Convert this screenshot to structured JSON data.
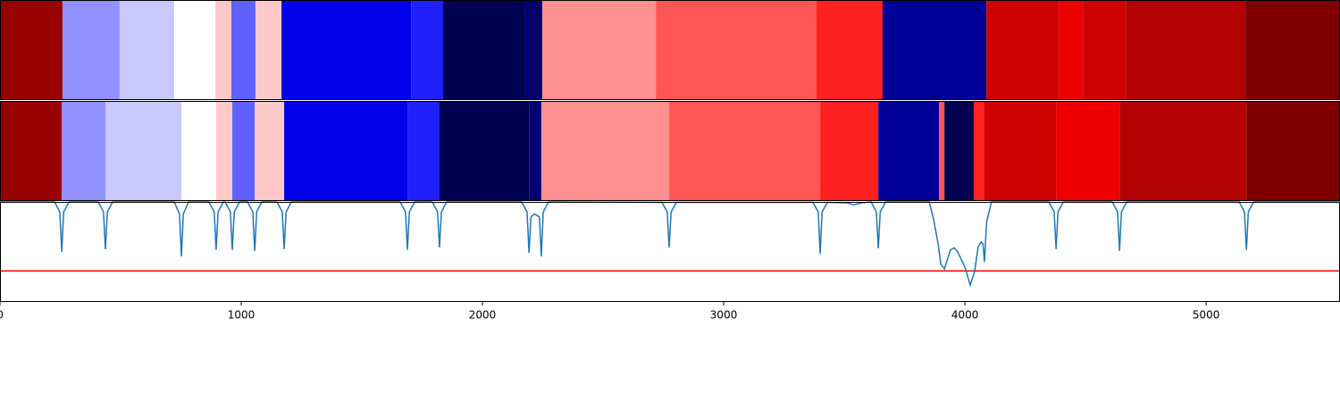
{
  "chart_data": {
    "type": "segmentation",
    "xlim": [
      0,
      5555
    ],
    "xticks": [
      0,
      1000,
      2000,
      3000,
      4000,
      5000
    ],
    "rows": [
      {
        "boundaries": [
          0,
          259,
          496,
          722,
          893,
          959,
          1059,
          1167,
          1704,
          1837,
          2174,
          2248,
          2719,
          3385,
          3659,
          4089,
          4389,
          4489,
          4667,
          5163,
          5555
        ],
        "colors": [
          "#990000",
          "#9090ff",
          "#c8c8ff",
          "#ffffff",
          "#ffc8c8",
          "#6060ff",
          "#ffc8c8",
          "#0000e8",
          "#2020ff",
          "#000050",
          "#00006e",
          "#ff9090",
          "#ff5555",
          "#ff2020",
          "#000099",
          "#d00000",
          "#ee0000",
          "#d00000",
          "#b30000",
          "#800000"
        ]
      },
      {
        "boundaries": [
          0,
          256,
          437,
          752,
          896,
          963,
          1056,
          1178,
          1689,
          1822,
          2193,
          2244,
          2774,
          3400,
          3641,
          3893,
          3915,
          4037,
          4081,
          4378,
          4641,
          5167,
          5555
        ],
        "colors": [
          "#990000",
          "#9090ff",
          "#c8c8ff",
          "#ffffff",
          "#ffc8c8",
          "#6060ff",
          "#ffc8c8",
          "#0000e8",
          "#2020ff",
          "#000050",
          "#00006e",
          "#ff9090",
          "#ff5555",
          "#ff2020",
          "#000099",
          "#ff5555",
          "#000050",
          "#ff2020",
          "#d00000",
          "#ee0000",
          "#b30000",
          "#800000"
        ]
      }
    ],
    "ylim": [
      0,
      1
    ],
    "line": {
      "color": "#1f77b4",
      "x": [
        0,
        226,
        248,
        256,
        264,
        286,
        407,
        429,
        437,
        445,
        467,
        722,
        744,
        752,
        760,
        782,
        866,
        888,
        896,
        904,
        926,
        933,
        955,
        963,
        971,
        993,
        1026,
        1048,
        1056,
        1064,
        1086,
        1148,
        1170,
        1178,
        1186,
        1208,
        1659,
        1681,
        1689,
        1697,
        1719,
        1792,
        1814,
        1822,
        1830,
        1852,
        2163,
        2185,
        2193,
        2201,
        2215,
        2236,
        2244,
        2252,
        2274,
        2744,
        2766,
        2774,
        2782,
        2804,
        3370,
        3392,
        3400,
        3408,
        3430,
        3510,
        3540,
        3570,
        3611,
        3633,
        3641,
        3649,
        3671,
        3852,
        3870,
        3889,
        3900,
        3915,
        3940,
        3956,
        3970,
        4000,
        4022,
        4040,
        4055,
        4067,
        4075,
        4081,
        4090,
        4110,
        4348,
        4370,
        4378,
        4386,
        4408,
        4611,
        4633,
        4641,
        4649,
        4671,
        5137,
        5159,
        5167,
        5175,
        5197,
        5555
      ],
      "y": [
        1,
        1,
        0.9,
        0.5,
        0.9,
        1,
        1,
        0.9,
        0.527,
        0.9,
        1,
        1,
        0.88,
        0.455,
        0.88,
        1,
        1,
        0.9,
        0.52,
        0.9,
        1,
        1,
        0.9,
        0.52,
        0.9,
        1,
        1,
        0.9,
        0.51,
        0.9,
        1,
        1,
        0.9,
        0.527,
        0.9,
        1,
        1,
        0.9,
        0.52,
        0.9,
        1,
        1,
        0.9,
        0.545,
        0.9,
        1,
        1,
        0.9,
        0.49,
        0.85,
        0.88,
        0.85,
        0.455,
        0.9,
        1,
        0.995,
        0.9,
        0.545,
        0.9,
        0.995,
        0.995,
        0.9,
        0.48,
        0.9,
        0.995,
        0.99,
        0.97,
        0.99,
        1,
        0.9,
        0.536,
        0.9,
        1,
        1,
        0.83,
        0.58,
        0.38,
        0.33,
        0.52,
        0.54,
        0.5,
        0.35,
        0.17,
        0.3,
        0.55,
        0.6,
        0.58,
        0.4,
        0.8,
        1,
        1,
        0.9,
        0.527,
        0.9,
        1,
        1,
        0.9,
        0.51,
        0.9,
        1,
        1,
        0.9,
        0.52,
        0.9,
        1,
        1
      ]
    },
    "hline": 0.31,
    "hline_color": "#ff0000"
  }
}
